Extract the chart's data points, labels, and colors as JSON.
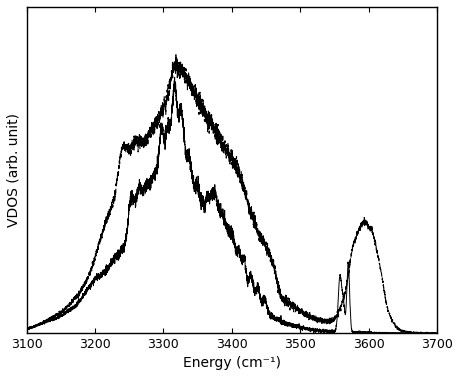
{
  "xlabel": "Energy (cm⁻¹)",
  "ylabel": "VDOS (arb. unit)",
  "xlim": [
    3100,
    3700
  ],
  "ylim": [
    0,
    1.15
  ],
  "xticks": [
    3100,
    3200,
    3300,
    3400,
    3500,
    3600,
    3700
  ],
  "background_color": "#ffffff",
  "line_color_solid": "#000000",
  "line_color_dashed": "#000000",
  "seed": 7
}
